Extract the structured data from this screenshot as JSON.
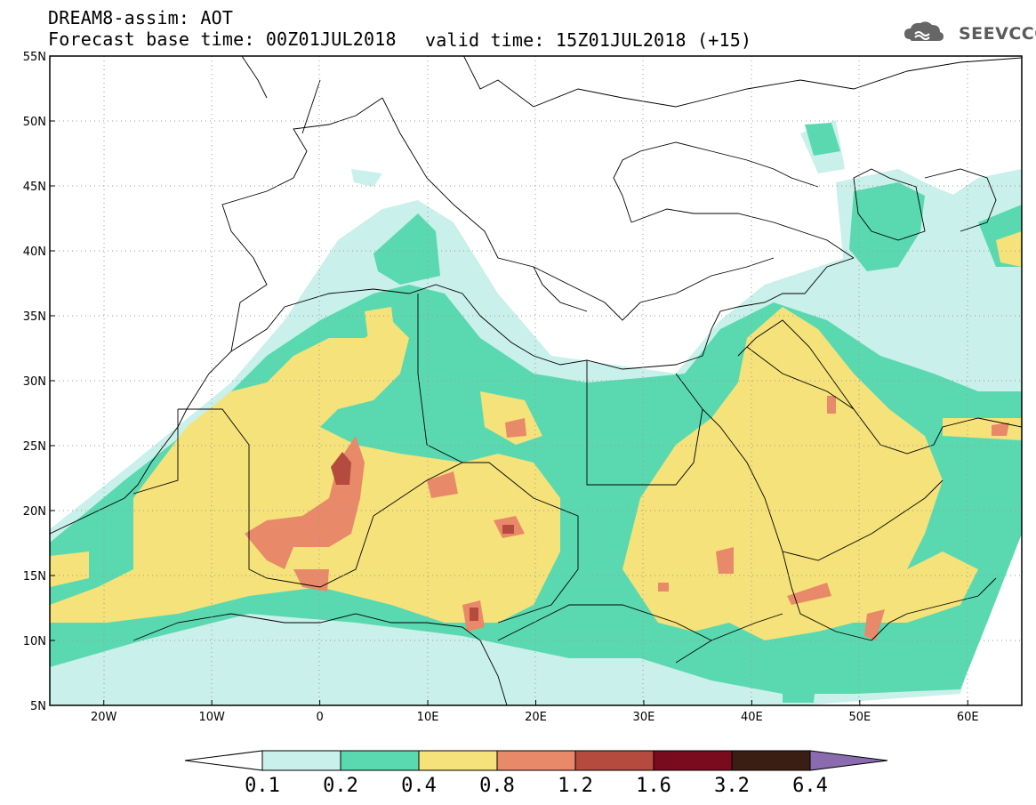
{
  "header": {
    "title": "DREAM8-assim: AOT",
    "base_time": "Forecast base time: 00Z01JUL2018",
    "valid_time": "valid time: 15Z01JUL2018 (+15)",
    "logo_text": "SEEVCCC"
  },
  "map": {
    "variable": "AOT",
    "lon_range": [
      -25,
      65
    ],
    "lat_range": [
      5,
      55
    ],
    "lat_ticks": [
      "5N",
      "10N",
      "15N",
      "20N",
      "25N",
      "30N",
      "35N",
      "40N",
      "45N",
      "50N",
      "55N"
    ],
    "lon_ticks": [
      "20W",
      "10W",
      "0",
      "10E",
      "20E",
      "30E",
      "40E",
      "50E",
      "60E"
    ]
  },
  "colorbar": {
    "labels": [
      "0.1",
      "0.2",
      "0.4",
      "0.8",
      "1.2",
      "1.6",
      "3.2",
      "6.4"
    ],
    "colors": [
      "#c9f0ea",
      "#5ad9b0",
      "#f5e27a",
      "#e8896a",
      "#b54a3e",
      "#7a0a1e",
      "#3a1e14",
      "#8b6bb0"
    ]
  }
}
